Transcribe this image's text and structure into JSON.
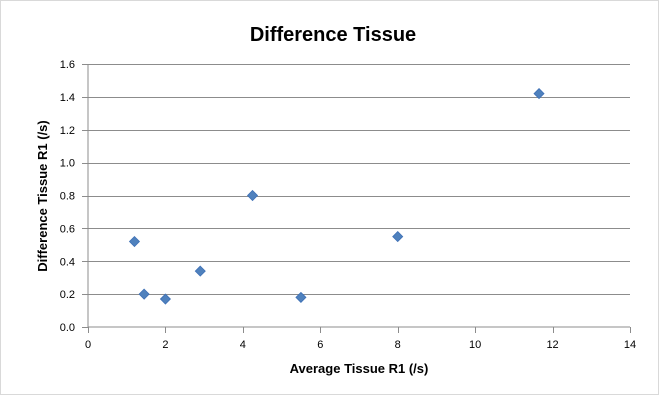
{
  "chart_data": {
    "type": "scatter",
    "title": "Difference Tissue",
    "xlabel": "Average Tissue R1 (/s)",
    "ylabel": "Difference Tissue R1 (/s)",
    "xlim": [
      0,
      14
    ],
    "ylim": [
      0,
      1.6
    ],
    "x_ticks": [
      "0",
      "2",
      "4",
      "6",
      "8",
      "10",
      "12",
      "14"
    ],
    "y_ticks": [
      "0.0",
      "0.2",
      "0.4",
      "0.6",
      "0.8",
      "1.0",
      "1.2",
      "1.4",
      "1.6"
    ],
    "grid": "horizontal",
    "legend": "none",
    "marker": "diamond",
    "colors": {
      "marker_fill": "#4f81bd",
      "marker_stroke": "#3e70b6",
      "grid": "#8c8c8c",
      "axis": "#8c8c8c"
    },
    "points": [
      {
        "x": 1.2,
        "y": 0.52
      },
      {
        "x": 1.45,
        "y": 0.2
      },
      {
        "x": 2.0,
        "y": 0.17
      },
      {
        "x": 2.9,
        "y": 0.34
      },
      {
        "x": 4.25,
        "y": 0.8
      },
      {
        "x": 5.5,
        "y": 0.18
      },
      {
        "x": 8.0,
        "y": 0.55
      },
      {
        "x": 11.65,
        "y": 1.42
      }
    ]
  }
}
